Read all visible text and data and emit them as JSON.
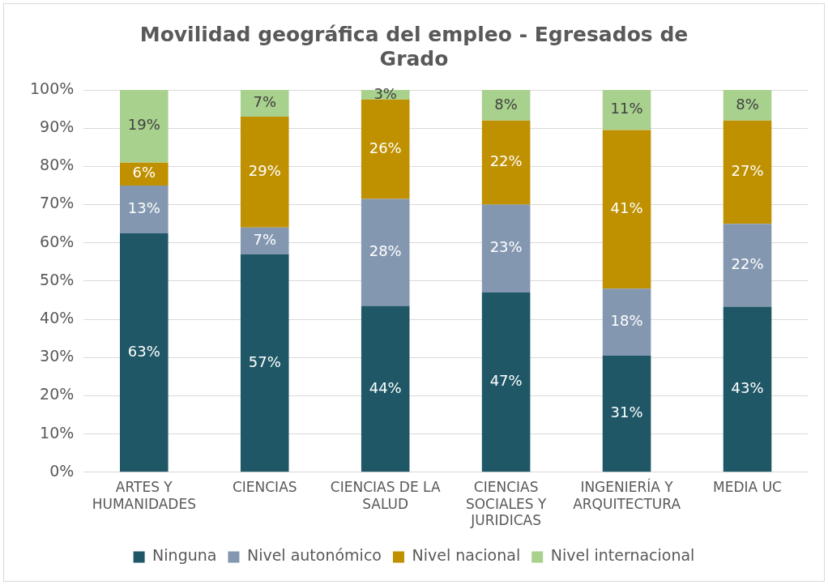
{
  "chart_data": {
    "type": "bar",
    "title": "Movilidad geográfica del empleo - Egresados de Grado",
    "categories": [
      "ARTES Y HUMANIDADES",
      "CIENCIAS",
      "CIENCIAS DE LA SALUD",
      "CIENCIAS SOCIALES Y JURIDICAS",
      "INGENIERÍA Y ARQUITECTURA",
      "MEDIA UC"
    ],
    "stacked": true,
    "ylim": [
      0,
      100
    ],
    "yticks": [
      {
        "value": 0,
        "label": "0%"
      },
      {
        "value": 10,
        "label": "10%"
      },
      {
        "value": 20,
        "label": "20%"
      },
      {
        "value": 30,
        "label": "30%"
      },
      {
        "value": 40,
        "label": "40%"
      },
      {
        "value": 50,
        "label": "50%"
      },
      {
        "value": 60,
        "label": "60%"
      },
      {
        "value": 70,
        "label": "70%"
      },
      {
        "value": 80,
        "label": "80%"
      },
      {
        "value": 90,
        "label": "90%"
      },
      {
        "value": 100,
        "label": "100%"
      }
    ],
    "grid": "y",
    "legend": "bottom",
    "series": [
      {
        "name": "Ninguna",
        "color": "#1f5767",
        "values": [
          62.5,
          57,
          43.5,
          47,
          30.5,
          43.3
        ],
        "value_labels": [
          "63%",
          "57%",
          "44%",
          "47%",
          "31%",
          "43%"
        ]
      },
      {
        "name": "Nivel autonómico",
        "color": "#8497b0",
        "values": [
          12.5,
          7,
          28,
          23,
          17.5,
          21.7
        ],
        "value_labels": [
          "13%",
          "7%",
          "28%",
          "23%",
          "18%",
          "22%"
        ]
      },
      {
        "name": "Nivel nacional",
        "color": "#bf9000",
        "values": [
          6,
          29,
          26,
          22,
          41.5,
          27
        ],
        "value_labels": [
          "6%",
          "29%",
          "26%",
          "22%",
          "41%",
          "27%"
        ]
      },
      {
        "name": "Nivel internacional",
        "color": "#a9d18e",
        "values": [
          19,
          7,
          2.5,
          8,
          10.5,
          8
        ],
        "value_labels": [
          "19%",
          "7%",
          "3%",
          "8%",
          "11%",
          "8%"
        ]
      }
    ]
  }
}
